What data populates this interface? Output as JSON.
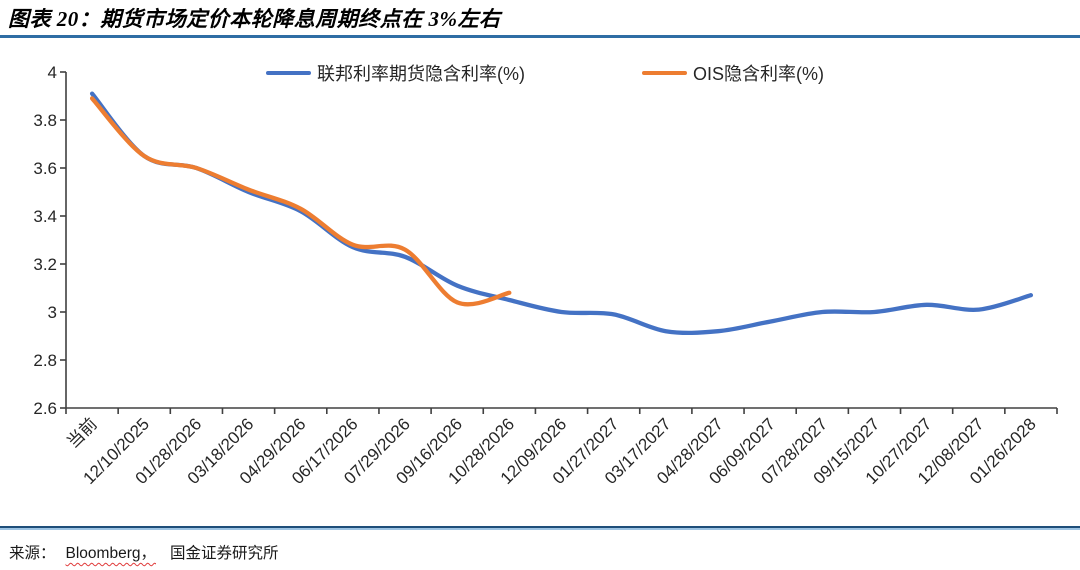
{
  "header": {
    "title": "图表 20：期货市场定价本轮降息周期终点在 3%左右"
  },
  "source": {
    "prefix": "来源：",
    "vendor": "Bloomberg，",
    "institution": "国金证券研究所"
  },
  "colors": {
    "series_blue": "#4472C4",
    "series_orange": "#ED7D31",
    "title_rule": "#2E6DA4",
    "footer_rule_dark": "#1F4E79",
    "footer_rule_light": "#9CC3E3",
    "axis": "#404040",
    "tick_text": "#262626"
  },
  "chart_data": {
    "type": "line",
    "title": "期货市场定价本轮降息周期终点在 3%左右",
    "figure_label": "图表 20",
    "categories": [
      "当前",
      "12/10/2025",
      "01/28/2026",
      "03/18/2026",
      "04/29/2026",
      "06/17/2026",
      "07/29/2026",
      "09/16/2026",
      "10/28/2026",
      "12/09/2026",
      "01/27/2027",
      "03/17/2027",
      "04/28/2027",
      "06/09/2027",
      "07/28/2027",
      "09/15/2027",
      "10/27/2027",
      "12/08/2027",
      "01/26/2028"
    ],
    "series": [
      {
        "id": "fed-futures",
        "name": "联邦利率期货隐含利率(%)",
        "color": "#4472C4",
        "values": [
          3.91,
          3.65,
          3.6,
          3.5,
          3.42,
          3.27,
          3.23,
          3.11,
          3.05,
          3.0,
          2.99,
          2.92,
          2.92,
          2.96,
          3.0,
          3.0,
          3.03,
          3.01,
          3.07
        ]
      },
      {
        "id": "ois",
        "name": "OIS隐含利率(%)",
        "color": "#ED7D31",
        "values": [
          3.89,
          3.65,
          3.6,
          3.51,
          3.43,
          3.28,
          3.26,
          3.04,
          3.08
        ]
      }
    ],
    "ylim": [
      2.6,
      4.0
    ],
    "yticks": [
      2.6,
      2.8,
      3.0,
      3.2,
      3.4,
      3.6,
      3.8,
      4.0
    ],
    "ytick_labels": [
      "2.6",
      "2.8",
      "3",
      "3.2",
      "3.4",
      "3.6",
      "3.8",
      "4"
    ],
    "x_label_rotation": -45,
    "grid": false,
    "smoothed": true,
    "legend_position": "top"
  }
}
